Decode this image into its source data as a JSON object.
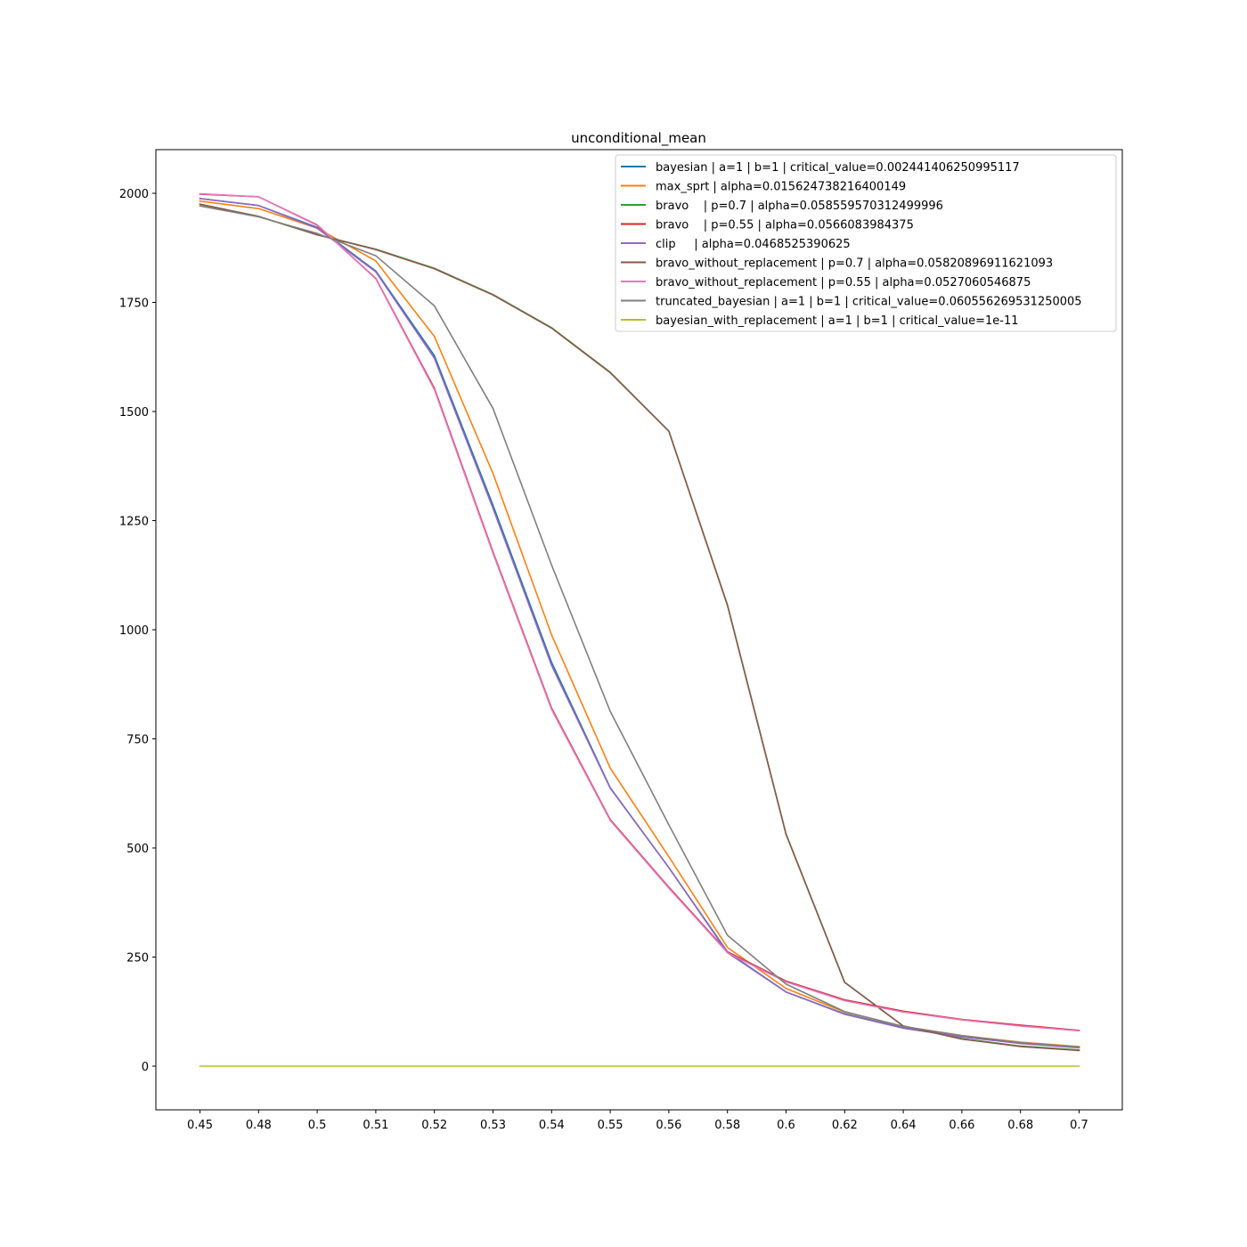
{
  "chart_data": {
    "type": "line",
    "title": "unconditional_mean",
    "xlabel": "",
    "ylabel": "",
    "categories": [
      "0.45",
      "0.48",
      "0.5",
      "0.51",
      "0.52",
      "0.53",
      "0.54",
      "0.55",
      "0.56",
      "0.58",
      "0.6",
      "0.62",
      "0.64",
      "0.66",
      "0.68",
      "0.7"
    ],
    "ylim": [
      -100,
      2100
    ],
    "yticks": [
      0,
      250,
      500,
      750,
      1000,
      1250,
      1500,
      1750,
      2000
    ],
    "grid": false,
    "legend_position": "upper right",
    "series": [
      {
        "name": "bayesian | a=1 | b=1 | critical_value=0.002441406250995117",
        "color": "#1f77b4",
        "values": [
          1988,
          1972,
          1922,
          1822,
          1628,
          1285,
          925,
          638,
          455,
          262,
          170,
          120,
          88,
          67,
          53,
          43
        ]
      },
      {
        "name": "max_sprt | alpha=0.015624738216400149",
        "color": "#ff7f0e",
        "values": [
          1982,
          1965,
          1920,
          1845,
          1672,
          1358,
          988,
          683,
          480,
          272,
          178,
          124,
          91,
          70,
          55,
          45
        ]
      },
      {
        "name": "bravo    | p=0.7 | alpha=0.058559570312499996",
        "color": "#2ca02c",
        "values": [
          1975,
          1947,
          1905,
          1872,
          1828,
          1768,
          1692,
          1590,
          1455,
          1057,
          532,
          192,
          92,
          63,
          46,
          37
        ]
      },
      {
        "name": "bravo    | p=0.55 | alpha=0.0566083984375",
        "color": "#d62728",
        "values": [
          1998,
          1992,
          1927,
          1805,
          1553,
          1178,
          820,
          565,
          410,
          262,
          195,
          152,
          126,
          107,
          94,
          82
        ]
      },
      {
        "name": "clip     | alpha=0.0468525390625",
        "color": "#9467bd",
        "values": [
          1988,
          1972,
          1920,
          1820,
          1622,
          1278,
          918,
          637,
          455,
          260,
          170,
          119,
          87,
          67,
          52,
          42
        ]
      },
      {
        "name": "bravo_without_replacement | p=0.7 | alpha=0.05820896911621093",
        "color": "#8c564b",
        "values": [
          1975,
          1947,
          1905,
          1871,
          1827,
          1767,
          1691,
          1589,
          1455,
          1056,
          531,
          192,
          92,
          62,
          45,
          36
        ]
      },
      {
        "name": "bravo_without_replacement | p=0.55 | alpha=0.0527060546875",
        "color": "#e377c2",
        "values": [
          1999,
          1992,
          1928,
          1804,
          1550,
          1175,
          817,
          563,
          408,
          260,
          193,
          150,
          124,
          106,
          92,
          81
        ]
      },
      {
        "name": "truncated_bayesian | a=1 | b=1 | critical_value=0.060556269531250005",
        "color": "#7f7f7f",
        "values": [
          1971,
          1946,
          1908,
          1857,
          1742,
          1507,
          1148,
          813,
          553,
          300,
          188,
          125,
          91,
          70,
          54,
          44
        ]
      },
      {
        "name": "bayesian_with_replacement | a=1 | b=1 | critical_value=1e-11",
        "color": "#bcbd22",
        "values": [
          0,
          0,
          0,
          0,
          0,
          0,
          0,
          0,
          0,
          0,
          0,
          0,
          0,
          0,
          0,
          0
        ]
      }
    ]
  }
}
